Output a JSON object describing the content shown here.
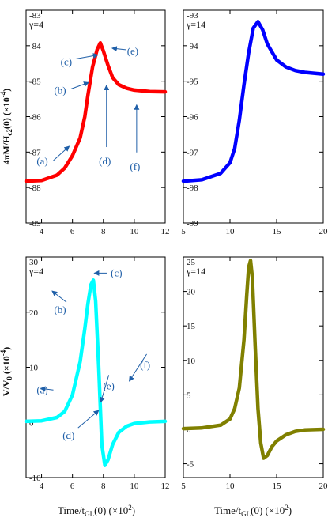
{
  "figure": {
    "ylabel_top": "4πM/H",
    "ylabel_top_sub": "c2",
    "ylabel_top_rest": "(0) (×10",
    "ylabel_top_exp": "-4",
    "ylabel_top_close": ")",
    "ylabel_bottom": "V/V",
    "ylabel_bottom_sub": "0",
    "ylabel_bottom_rest": " (×10",
    "ylabel_bottom_exp": "-4",
    "ylabel_bottom_close": ")",
    "xlabel_left": "Time/t",
    "xlabel_left_sub": "GL",
    "xlabel_left_mid": "(0) (×10",
    "xlabel_left_exp": "2",
    "xlabel_left_close": ")",
    "xlabel_right": "Time/t",
    "xlabel_right_sub": "GL",
    "xlabel_right_mid": "(0) (×10",
    "xlabel_right_exp": "2",
    "xlabel_right_close": ")"
  },
  "chart_data": [
    {
      "id": "A",
      "type": "line",
      "gamma_label": "γ=4",
      "color": "#ff0000",
      "xlim": [
        3,
        12
      ],
      "ylim": [
        -89,
        -83
      ],
      "xticks": [
        4,
        6,
        8,
        10,
        12
      ],
      "xtick_labels": [
        "4",
        "6",
        "8",
        "10",
        "12"
      ],
      "yticks": [
        -89,
        -88,
        -87,
        -86,
        -85,
        -84,
        -83
      ],
      "ytick_labels": [
        "-89",
        "-88",
        "-87",
        "-86",
        "-85",
        "-84",
        "-83"
      ],
      "x": [
        3.0,
        4.0,
        5.0,
        5.5,
        6.0,
        6.5,
        6.8,
        7.0,
        7.3,
        7.6,
        7.8,
        8.0,
        8.3,
        8.6,
        9.0,
        9.5,
        10.0,
        11.0,
        12.0
      ],
      "y": [
        -87.82,
        -87.8,
        -87.65,
        -87.45,
        -87.1,
        -86.6,
        -86.0,
        -85.4,
        -84.6,
        -84.1,
        -83.92,
        -84.15,
        -84.55,
        -84.9,
        -85.1,
        -85.2,
        -85.25,
        -85.29,
        -85.3
      ],
      "annotations": [
        {
          "label": "(a)",
          "x": 4.05,
          "y": -87.35
        },
        {
          "label": "(b)",
          "x": 5.2,
          "y": -85.35
        },
        {
          "label": "(c)",
          "x": 5.6,
          "y": -84.55
        },
        {
          "label": "(d)",
          "x": 8.1,
          "y": -87.35
        },
        {
          "label": "(e)",
          "x": 9.9,
          "y": -84.25
        },
        {
          "label": "(f)",
          "x": 10.05,
          "y": -87.5
        }
      ]
    },
    {
      "id": "B",
      "type": "line",
      "gamma_label": "γ=14",
      "color": "#0000ff",
      "xlim": [
        5,
        20
      ],
      "ylim": [
        -99,
        -93
      ],
      "xticks": [
        5,
        10,
        15,
        20
      ],
      "xtick_labels": [
        "5",
        "10",
        "15",
        "20"
      ],
      "yticks": [
        -99,
        -98,
        -97,
        -96,
        -95,
        -94,
        -93
      ],
      "ytick_labels": [
        "-99",
        "-98",
        "-97",
        "-96",
        "-95",
        "-94",
        "-93"
      ],
      "x": [
        5,
        7,
        9,
        10,
        10.5,
        11,
        11.5,
        12,
        12.5,
        13,
        13.5,
        14,
        15,
        16,
        17,
        18,
        20
      ],
      "y": [
        -97.82,
        -97.78,
        -97.6,
        -97.3,
        -96.9,
        -96.1,
        -95.1,
        -94.2,
        -93.5,
        -93.32,
        -93.55,
        -93.95,
        -94.4,
        -94.6,
        -94.7,
        -94.75,
        -94.8
      ]
    },
    {
      "id": "C",
      "type": "line",
      "gamma_label": "γ=4",
      "color": "#00ffff",
      "xlim": [
        3,
        12
      ],
      "ylim": [
        -10,
        30
      ],
      "xticks": [
        4,
        6,
        8,
        10,
        12
      ],
      "xtick_labels": [
        "4",
        "6",
        "8",
        "10",
        "12"
      ],
      "yticks": [
        -10,
        0,
        10,
        20,
        30
      ],
      "ytick_labels": [
        "-10",
        "0",
        "10",
        "20",
        "30"
      ],
      "x": [
        3.0,
        4.0,
        5.0,
        5.5,
        6.0,
        6.5,
        6.8,
        7.0,
        7.2,
        7.35,
        7.5,
        7.7,
        7.9,
        8.1,
        8.3,
        8.6,
        9.0,
        9.5,
        10.0,
        11.0,
        12.0
      ],
      "y": [
        0.2,
        0.3,
        0.9,
        2.0,
        5.0,
        11.0,
        17.0,
        21.5,
        25.0,
        25.8,
        22.0,
        10.0,
        -4.0,
        -7.8,
        -6.8,
        -4.0,
        -1.8,
        -0.7,
        -0.2,
        0.1,
        0.2
      ],
      "annotations": [
        {
          "label": "(a)",
          "x": 4.05,
          "y": 5.3
        },
        {
          "label": "(b)",
          "x": 5.2,
          "y": 19.8
        },
        {
          "label": "(c)",
          "x": 8.85,
          "y": 26.5
        },
        {
          "label": "(d)",
          "x": 5.75,
          "y": -3.0
        },
        {
          "label": "(e)",
          "x": 8.35,
          "y": 6.0
        },
        {
          "label": "(f)",
          "x": 10.7,
          "y": 9.8
        }
      ]
    },
    {
      "id": "D",
      "type": "line",
      "gamma_label": "γ=14",
      "color": "#808000",
      "xlim": [
        5,
        20
      ],
      "ylim": [
        -7,
        25
      ],
      "xticks": [
        5,
        10,
        15,
        20
      ],
      "xtick_labels": [
        "5",
        "10",
        "15",
        "20"
      ],
      "yticks": [
        -5,
        0,
        5,
        10,
        15,
        20,
        25
      ],
      "ytick_labels": [
        "-5",
        "0",
        "5",
        "10",
        "15",
        "20",
        "25"
      ],
      "x": [
        5,
        7,
        9,
        10,
        10.5,
        11,
        11.5,
        11.8,
        12.0,
        12.2,
        12.4,
        12.7,
        13.0,
        13.3,
        13.6,
        14.0,
        14.5,
        15,
        16,
        17,
        18,
        20
      ],
      "y": [
        0.1,
        0.2,
        0.6,
        1.5,
        3.0,
        6.0,
        13.0,
        19.5,
        23.5,
        24.5,
        22.0,
        12.0,
        3.0,
        -2.0,
        -4.2,
        -3.8,
        -2.5,
        -1.7,
        -0.8,
        -0.3,
        -0.1,
        0.0
      ]
    }
  ]
}
